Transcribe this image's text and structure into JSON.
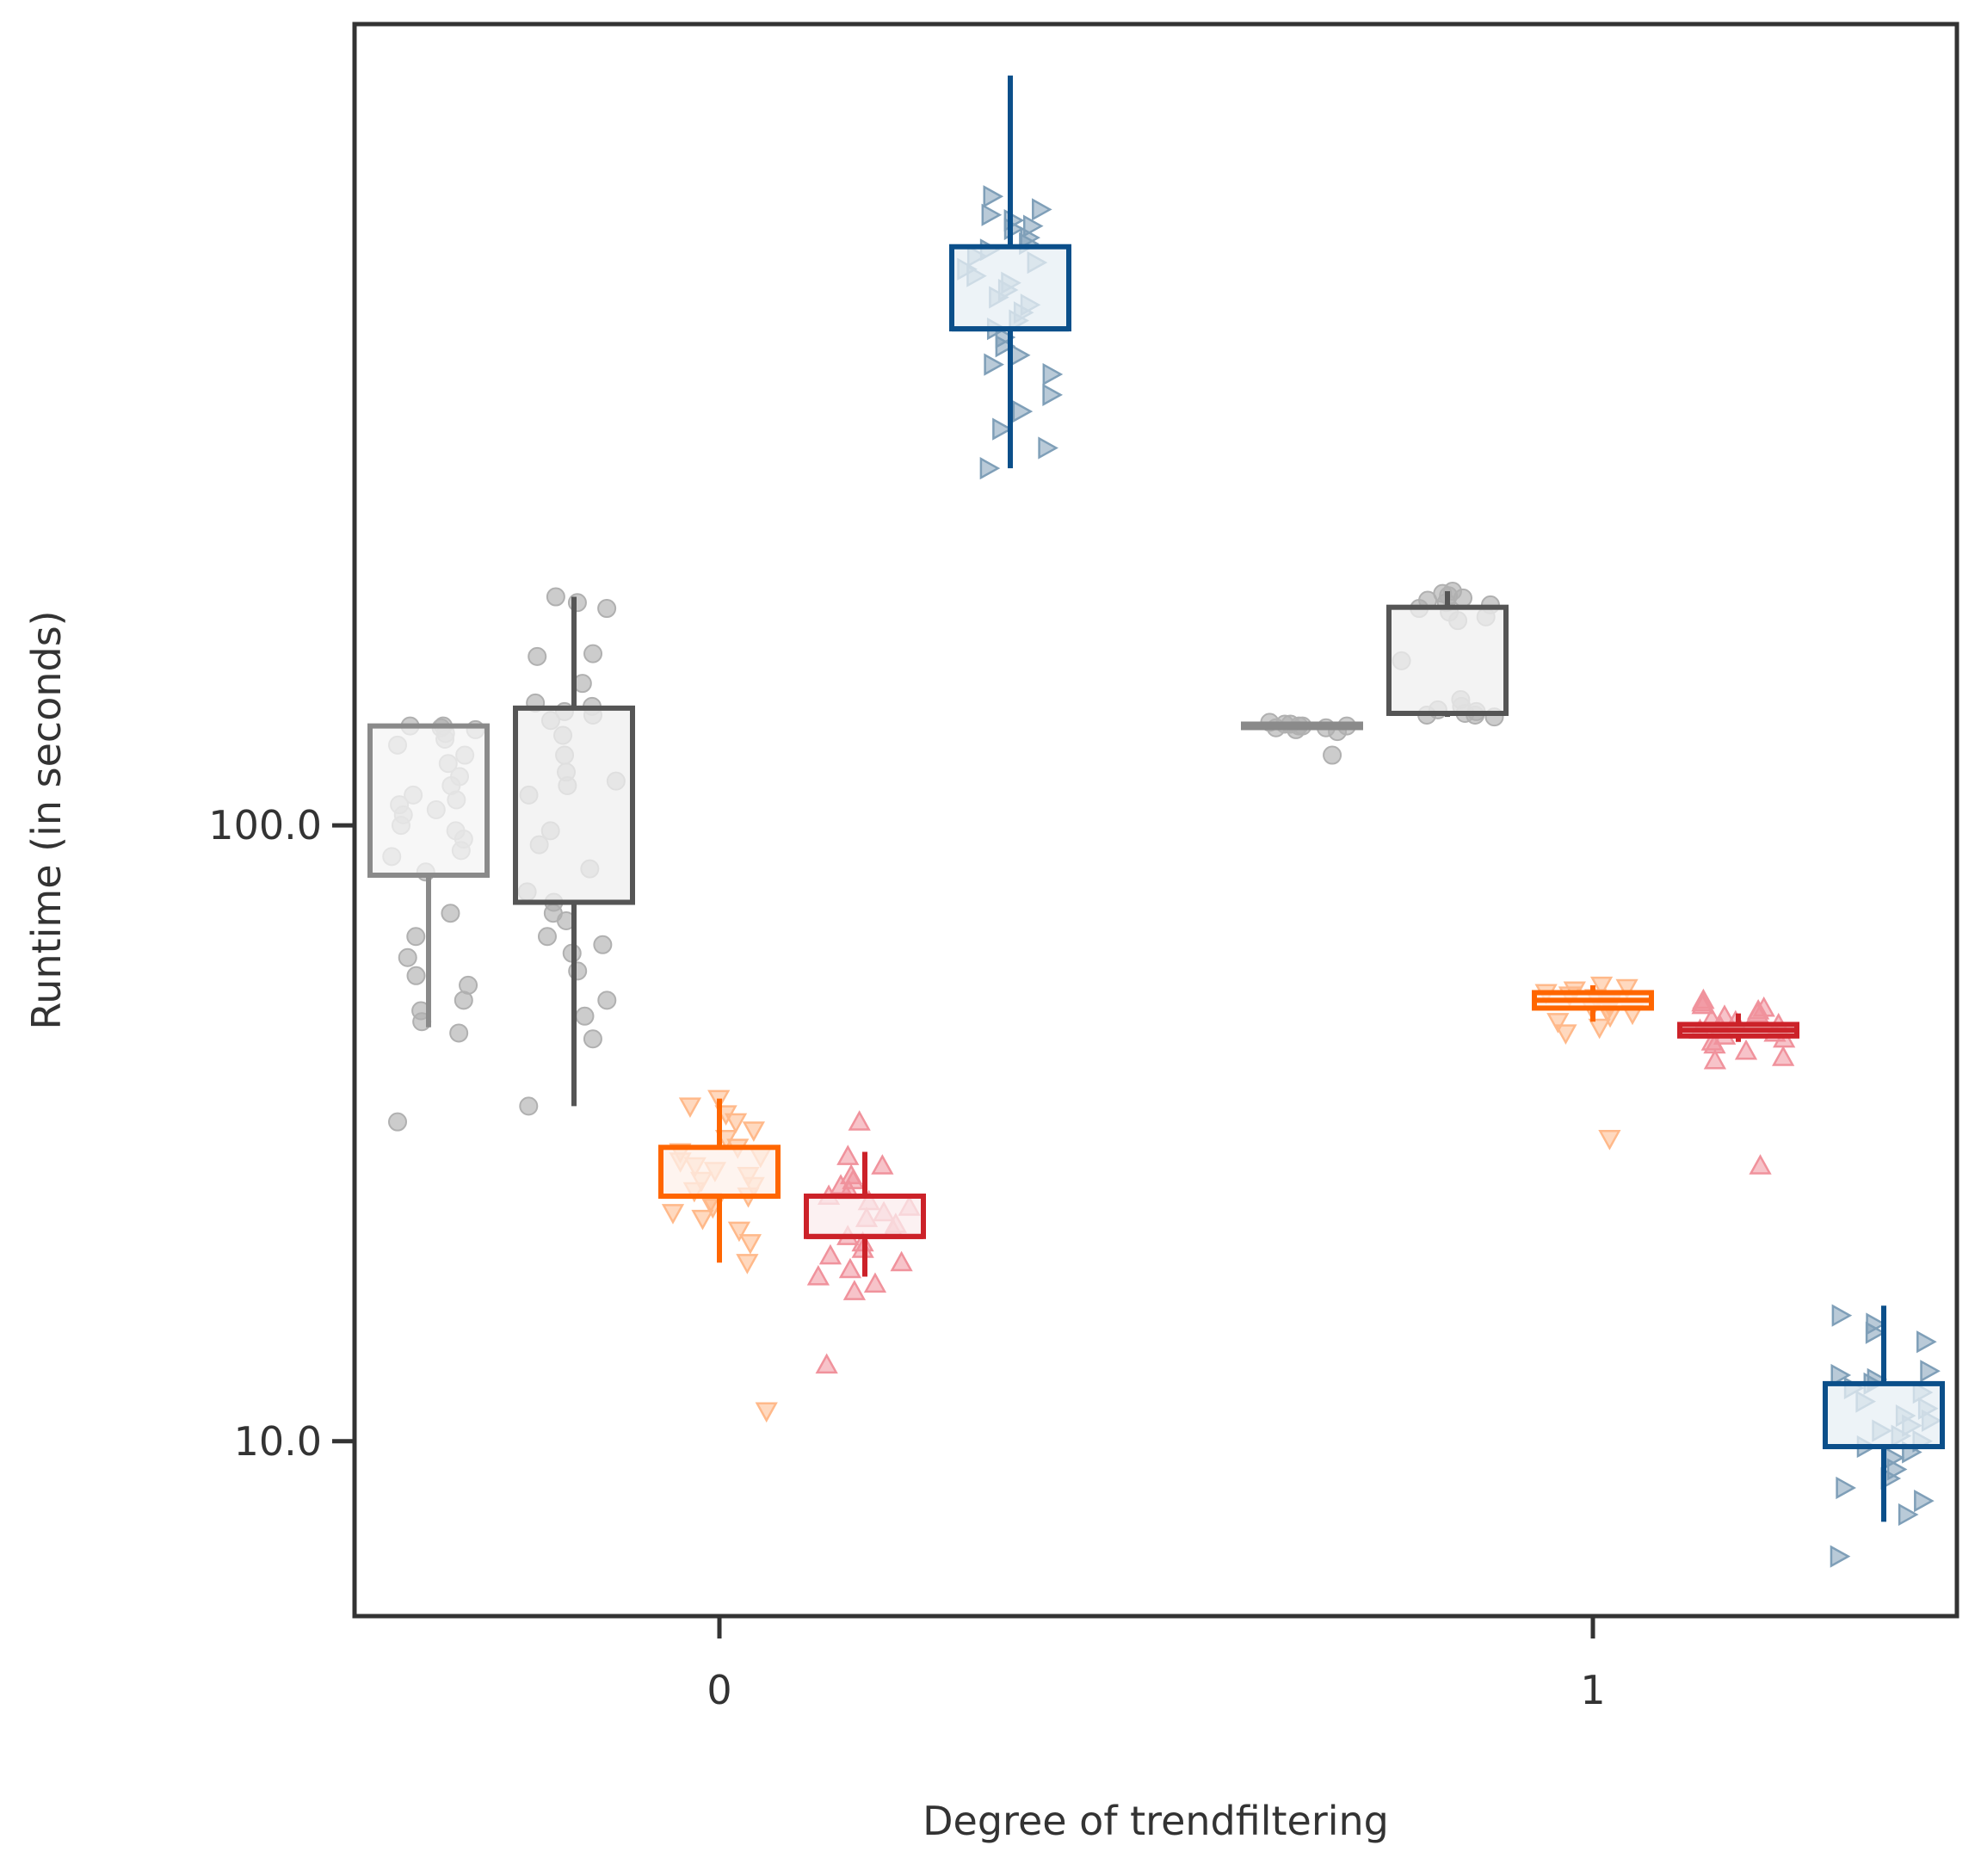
{
  "chart_data": {
    "type": "box",
    "title": "",
    "xlabel": "Degree of trendfiltering",
    "ylabel": "Runtime (in seconds)",
    "y_scale": "log",
    "ylim": [
      5.2,
      2000
    ],
    "categories": [
      "0",
      "1"
    ],
    "y_ticks": [
      10,
      100
    ],
    "y_tick_labels": [
      "10.0",
      "100.0"
    ],
    "grid": false,
    "legend": "none",
    "series": [
      {
        "edge_color": "#8a8a8a",
        "fill_color": "#f4f4f4",
        "point_color": "#b0b0b0",
        "marker": "circle",
        "boxes": [
          {
            "category": "0",
            "q1": 83,
            "median": 83,
            "q3": 145,
            "whisker_low": 47,
            "whisker_high": 145,
            "points": [
              145,
              145,
              144,
              143,
              141,
              138,
              135,
              130,
              126,
              120,
              116,
              112,
              110,
              108,
              106,
              104,
              100,
              98,
              95,
              91,
              89,
              84,
              72,
              66,
              61,
              57,
              55,
              52,
              50,
              48,
              46,
              33
            ]
          },
          {
            "category": "1",
            "q1": 145,
            "median": 145,
            "q3": 146,
            "whisker_low": 144,
            "whisker_high": 147,
            "points": [
              147,
              146,
              146,
              145,
              145,
              145,
              144,
              144,
              143,
              142,
              130
            ]
          }
        ]
      },
      {
        "edge_color": "#555555",
        "fill_color": "#efefef",
        "point_color": "#b0b0b0",
        "marker": "circle",
        "boxes": [
          {
            "category": "0",
            "q1": 75,
            "median": 75,
            "q3": 155,
            "whisker_low": 35,
            "whisker_high": 235,
            "points": [
              235,
              230,
              225,
              190,
              188,
              170,
              158,
              156,
              153,
              151,
              148,
              140,
              130,
              122,
              118,
              116,
              112,
              98,
              93,
              85,
              78,
              75,
              72,
              70,
              66,
              64,
              62,
              58,
              52,
              49,
              45,
              35
            ]
          },
          {
            "category": "1",
            "q1": 152,
            "median": 152,
            "q3": 226,
            "whisker_low": 150,
            "whisker_high": 240,
            "points": [
              240,
              238,
              236,
              234,
              232,
              230,
              228,
              225,
              222,
              218,
              215,
              185,
              160,
              156,
              154,
              153,
              152,
              151,
              151,
              150
            ]
          }
        ]
      },
      {
        "edge_color": "#ff6600",
        "fill_color": "#fdf0ea",
        "point_color": "#ffb98a",
        "marker": "triangle-down",
        "boxes": [
          {
            "category": "0",
            "q1": 25,
            "median": 25,
            "q3": 30,
            "whisker_low": 19.5,
            "whisker_high": 36,
            "points": [
              36,
              35,
              34,
              33,
              32,
              31,
              30,
              29.5,
              29,
              28.5,
              28,
              27.5,
              27,
              26.5,
              26,
              25.5,
              25,
              24.5,
              24,
              23.5,
              23,
              22,
              21,
              19.5,
              11.2
            ]
          },
          {
            "category": "1",
            "q1": 50.5,
            "median": 52,
            "q3": 53.5,
            "whisker_low": 48,
            "whisker_high": 55,
            "points": [
              55,
              54.5,
              54,
              53.5,
              53,
              52.5,
              52,
              51.5,
              51,
              50.5,
              50,
              49.5,
              49,
              48,
              47,
              46,
              31
            ]
          }
        ]
      },
      {
        "edge_color": "#cc2229",
        "fill_color": "#fbeced",
        "point_color": "#f0929c",
        "marker": "triangle-up",
        "boxes": [
          {
            "category": "0",
            "q1": 21.5,
            "median": 21.5,
            "q3": 25,
            "whisker_low": 18.5,
            "whisker_high": 29.5,
            "points": [
              33,
              29,
              28,
              27,
              26.5,
              26,
              25.5,
              25,
              24.5,
              24,
              23.5,
              23,
              22.5,
              22,
              21.5,
              21,
              20.5,
              20,
              19.5,
              19,
              18.5,
              18,
              17.5,
              13.3
            ]
          },
          {
            "category": "1",
            "q1": 45.5,
            "median": 46.5,
            "q3": 47.5,
            "whisker_low": 44.5,
            "whisker_high": 49.5,
            "points": [
              52,
              51.5,
              51,
              50.5,
              50,
              49.5,
              49,
              48.5,
              48,
              47.5,
              47,
              46.5,
              46,
              45.5,
              45,
              44.5,
              44,
              43,
              42,
              41.5,
              28
            ]
          }
        ]
      },
      {
        "edge_color": "#0b4f8a",
        "fill_color": "#e7eff4",
        "point_color": "#7f9fb8",
        "marker": "triangle-right",
        "boxes": [
          {
            "category": "0",
            "q1": 640,
            "median": 640,
            "q3": 870,
            "whisker_low": 380,
            "whisker_high": 1650,
            "points": [
              1050,
              1000,
              980,
              960,
              940,
              930,
              900,
              880,
              860,
              840,
              820,
              800,
              780,
              760,
              740,
              720,
              700,
              680,
              660,
              640,
              620,
              600,
              580,
              560,
              540,
              500,
              470,
              440,
              410,
              380
            ]
          },
          {
            "category": "1",
            "q1": 9.8,
            "median": 9.8,
            "q3": 12.4,
            "whisker_low": 7.4,
            "whisker_high": 16.6,
            "points": [
              16,
              15.5,
              15,
              14.5,
              13,
              12.8,
              12.6,
              12.4,
              12.2,
              12,
              11.6,
              11.3,
              11,
              10.8,
              10.6,
              10.4,
              10.2,
              10,
              9.8,
              9.6,
              9.4,
              9,
              8.7,
              8.4,
              8,
              7.6,
              6.5
            ]
          }
        ]
      }
    ]
  }
}
